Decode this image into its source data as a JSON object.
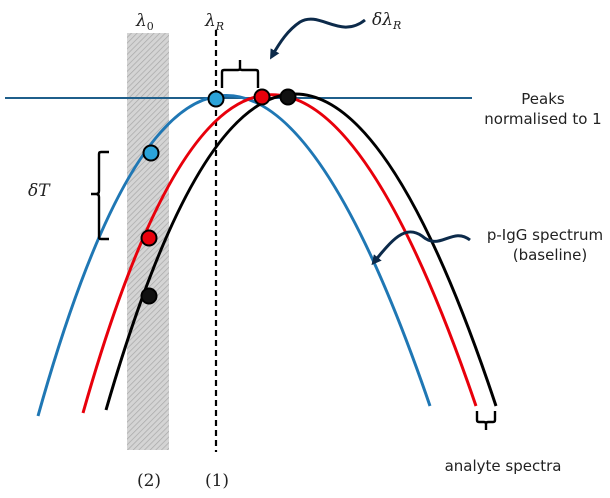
{
  "labels": {
    "lambda0": "λ",
    "lambda0_sub": "0",
    "lambdaR": "λ",
    "lambdaR_sub": "R",
    "delta_lambdaR": "δλ",
    "delta_lambdaR_sub": "R",
    "deltaT": "δT",
    "peaks_line1": "Peaks",
    "peaks_line2": "normalised to 1",
    "pigg_line1": "p-IgG spectrum",
    "pigg_line2": "(baseline)",
    "analyte": "analyte spectra",
    "marker2": "(2)",
    "marker1": "(1)"
  },
  "colors": {
    "baseline_curve": "#1f77b4",
    "red_curve": "#e8000b",
    "black_curve": "#000000",
    "peak_line": "#1f5f8b",
    "shaded_band": "#c8c8c8",
    "point_blue": "#2ba3d9",
    "point_red": "#e8000b",
    "point_black": "#111111",
    "arrow": "#0c2a4a"
  }
}
